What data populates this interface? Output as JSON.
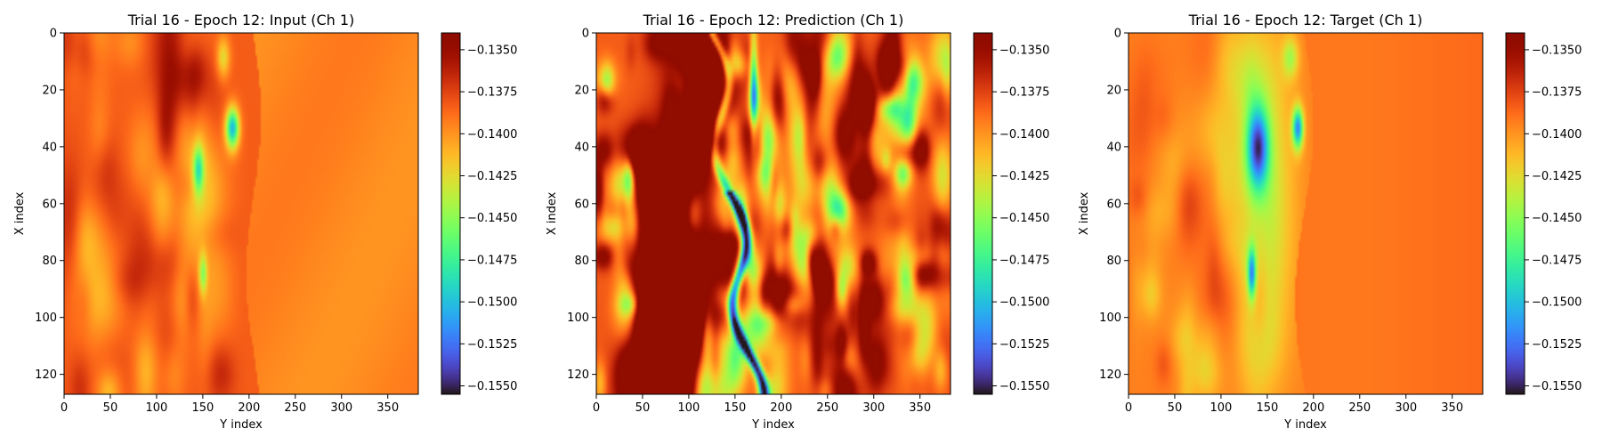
{
  "figure": {
    "colormap": "turbo",
    "background": "#ffffff"
  },
  "colorbar": {
    "ticks": [
      "−0.1350",
      "−0.1375",
      "−0.1400",
      "−0.1425",
      "−0.1450",
      "−0.1475",
      "−0.1500",
      "−0.1525",
      "−0.1550"
    ]
  },
  "chart_data": [
    {
      "type": "heatmap",
      "title": "Trial 16 - Epoch 12: Input (Ch 1)",
      "xlabel": "Y index",
      "ylabel": "X index",
      "xlim": [
        0,
        383
      ],
      "ylim": [
        127,
        0
      ],
      "xticks": [
        "0",
        "50",
        "100",
        "150",
        "200",
        "250",
        "300",
        "350"
      ],
      "yticks": [
        "0",
        "20",
        "40",
        "60",
        "80",
        "100",
        "120"
      ],
      "vmin": -0.1555,
      "vmax": -0.134,
      "colorbar_ticks": [
        -0.135,
        -0.1375,
        -0.14,
        -0.1425,
        -0.145,
        -0.1475,
        -0.15,
        -0.1525,
        -0.155
      ],
      "field_type": "input"
    },
    {
      "type": "heatmap",
      "title": "Trial 16 - Epoch 12: Prediction (Ch 1)",
      "xlabel": "Y index",
      "ylabel": "X index",
      "xlim": [
        0,
        383
      ],
      "ylim": [
        127,
        0
      ],
      "xticks": [
        "0",
        "50",
        "100",
        "150",
        "200",
        "250",
        "300",
        "350"
      ],
      "yticks": [
        "0",
        "20",
        "40",
        "60",
        "80",
        "100",
        "120"
      ],
      "vmin": -0.1555,
      "vmax": -0.134,
      "colorbar_ticks": [
        -0.135,
        -0.1375,
        -0.14,
        -0.1425,
        -0.145,
        -0.1475,
        -0.15,
        -0.1525,
        -0.155
      ],
      "field_type": "prediction"
    },
    {
      "type": "heatmap",
      "title": "Trial 16 - Epoch 12: Target (Ch 1)",
      "xlabel": "Y index",
      "ylabel": "X index",
      "xlim": [
        0,
        383
      ],
      "ylim": [
        127,
        0
      ],
      "xticks": [
        "0",
        "50",
        "100",
        "150",
        "200",
        "250",
        "300",
        "350"
      ],
      "yticks": [
        "0",
        "20",
        "40",
        "60",
        "80",
        "100",
        "120"
      ],
      "vmin": -0.1555,
      "vmax": -0.134,
      "colorbar_ticks": [
        -0.135,
        -0.1375,
        -0.14,
        -0.1425,
        -0.145,
        -0.1475,
        -0.15,
        -0.1525,
        -0.155
      ],
      "field_type": "target"
    }
  ]
}
